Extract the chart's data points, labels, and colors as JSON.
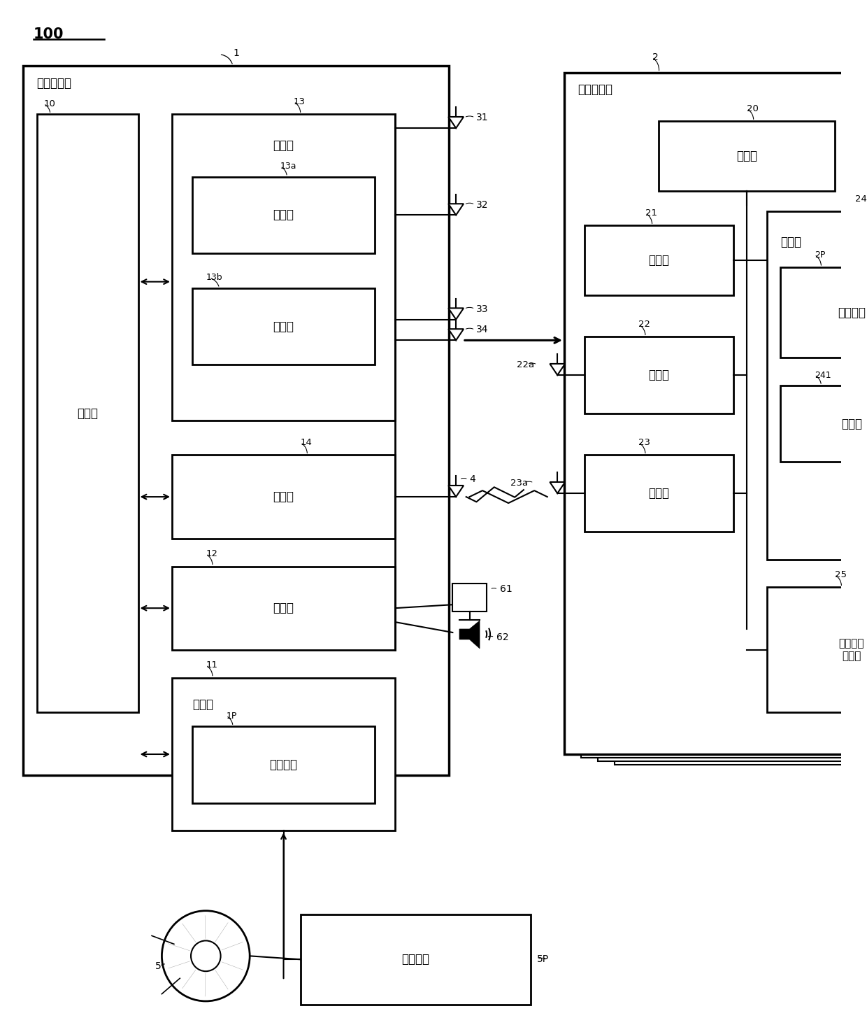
{
  "bg_color": "#ffffff",
  "labels": {
    "r100": "100",
    "vehicle_device": "车身侧装置",
    "tire_device": "轮胎侧装置",
    "control_1": "控制部",
    "send_13": "发送部",
    "switch_13a": "切换部",
    "select_13b": "选择部",
    "receive_14": "接收部",
    "output_12": "输出部",
    "storage_11": "存储部",
    "prog_1p": "控制程序",
    "control_20": "控制部",
    "sensor_21": "传感器",
    "receive_22": "接收部",
    "send_23": "发送部",
    "storage_24": "存储部",
    "prog_2p": "控制程序",
    "id_241": "标识符",
    "strength_25": "接收强度\n测定部",
    "prog_5p": "控制程序"
  },
  "refs": {
    "n100": "100",
    "n1": "1",
    "n2": "2",
    "n10": "10",
    "n11": "11",
    "n12": "12",
    "n13": "13",
    "n13a": "13a",
    "n13b": "13b",
    "n14": "14",
    "n20": "20",
    "n21": "21",
    "n22": "22",
    "n22a": "22a",
    "n23": "23",
    "n23a": "23a",
    "n24": "24",
    "n241": "241",
    "n25": "25",
    "n31": "31",
    "n32": "32",
    "n33": "33",
    "n34": "34",
    "n4": "4",
    "n5": "5",
    "n5p": "5P",
    "n61": "61",
    "n62": "62",
    "n1p": "1P",
    "n2p": "2P"
  }
}
